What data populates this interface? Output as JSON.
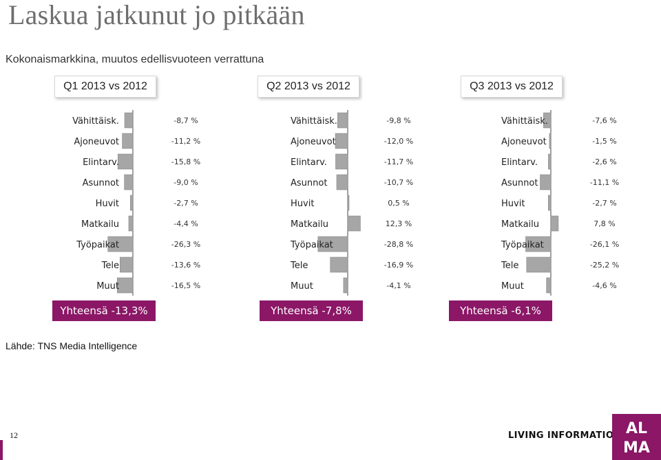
{
  "title": "Laskua jatkunut jo pitkään",
  "subtitle": "Kokonaismarkkina, muutos edellisvuoteen verrattuna",
  "source": "Lähde: TNS Media Intelligence",
  "page_number": "12",
  "footer": {
    "tagline": "LIVING INFORMATION",
    "logo_line1": "ALMA",
    "logo_text": "AL MA"
  },
  "colors": {
    "bar": "#a6a6a6",
    "bar_edge": "#7f7f7f",
    "total_bg": "#8b1766"
  },
  "chart_data": [
    {
      "type": "bar",
      "orientation": "horizontal",
      "header": "Q1 2013 vs 2012",
      "total": "Yhteensä -13,3%",
      "categories": [
        "Vähittäisk.",
        "Ajoneuvot",
        "Elintarv.",
        "Asunnot",
        "Huvit",
        "Matkailu",
        "Työpaikat",
        "Tele",
        "Muut"
      ],
      "values": [
        -8.7,
        -11.2,
        -15.8,
        -9.0,
        -2.7,
        -4.4,
        -26.3,
        -13.6,
        -16.5
      ],
      "value_labels": [
        "-8,7 %",
        "-11,2 %",
        "-15,8 %",
        "-9,0 %",
        "-2,7 %",
        "-4,4 %",
        "-26,3 %",
        "-13,6 %",
        "-16,5 %"
      ]
    },
    {
      "type": "bar",
      "orientation": "horizontal",
      "header": "Q2 2013 vs 2012",
      "total": "Yhteensä -7,8%",
      "categories": [
        "Vähittäisk.",
        "Ajoneuvot",
        "Elintarv.",
        "Asunnot",
        "Huvit",
        "Matkailu",
        "Työpaikat",
        "Tele",
        "Muut"
      ],
      "values": [
        -9.8,
        -12.0,
        -11.7,
        -10.7,
        0.5,
        12.3,
        -28.8,
        -16.9,
        -4.1
      ],
      "value_labels": [
        "-9,8 %",
        "-12,0 %",
        "-11,7 %",
        "-10,7 %",
        "0,5 %",
        "12,3 %",
        "-28,8 %",
        "-16,9 %",
        "-4,1 %"
      ]
    },
    {
      "type": "bar",
      "orientation": "horizontal",
      "header": "Q3 2013 vs 2012",
      "total": "Yhteensä -6,1%",
      "categories": [
        "Vähittäisk.",
        "Ajoneuvot",
        "Elintarv.",
        "Asunnot",
        "Huvit",
        "Matkailu",
        "Työpaikat",
        "Tele",
        "Muut"
      ],
      "values": [
        -7.6,
        -1.5,
        -2.6,
        -11.1,
        -2.7,
        7.8,
        -26.1,
        -25.2,
        -4.6
      ],
      "value_labels": [
        "-7,6 %",
        "-1,5 %",
        "-2,6 %",
        "-11,1 %",
        "-2,7 %",
        "7,8 %",
        "-26,1 %",
        "-25,2 %",
        "-4,6 %"
      ]
    }
  ]
}
